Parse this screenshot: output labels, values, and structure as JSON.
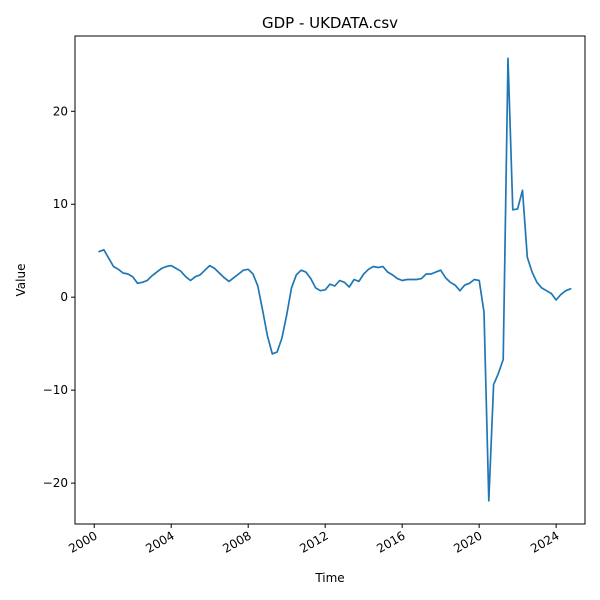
{
  "chart_data": {
    "type": "line",
    "title": "GDP - UKDATA.csv",
    "xlabel": "Time",
    "ylabel": "Value",
    "xlim": [
      1999.0,
      2025.5
    ],
    "ylim": [
      -24.4,
      28.1
    ],
    "grid": false,
    "x_ticks": [
      2000,
      2004,
      2008,
      2012,
      2016,
      2020,
      2024
    ],
    "x_tick_labels": [
      "2000",
      "2004",
      "2008",
      "2012",
      "2016",
      "2020",
      "2024"
    ],
    "y_ticks": [
      -20,
      -10,
      0,
      10,
      20
    ],
    "y_tick_labels": [
      "−20",
      "−10",
      "0",
      "10",
      "20"
    ],
    "series": [
      {
        "color": "#1f77b4",
        "x": [
          2000.25,
          2000.5,
          2000.75,
          2001.0,
          2001.25,
          2001.5,
          2001.75,
          2002.0,
          2002.25,
          2002.5,
          2002.75,
          2003.0,
          2003.25,
          2003.5,
          2003.75,
          2004.0,
          2004.25,
          2004.5,
          2004.75,
          2005.0,
          2005.25,
          2005.5,
          2005.75,
          2006.0,
          2006.25,
          2006.5,
          2006.75,
          2007.0,
          2007.25,
          2007.5,
          2007.75,
          2008.0,
          2008.25,
          2008.5,
          2008.75,
          2009.0,
          2009.25,
          2009.5,
          2009.75,
          2010.0,
          2010.25,
          2010.5,
          2010.75,
          2011.0,
          2011.25,
          2011.5,
          2011.75,
          2012.0,
          2012.25,
          2012.5,
          2012.75,
          2013.0,
          2013.25,
          2013.5,
          2013.75,
          2014.0,
          2014.25,
          2014.5,
          2014.75,
          2015.0,
          2015.25,
          2015.5,
          2015.75,
          2016.0,
          2016.25,
          2016.5,
          2016.75,
          2017.0,
          2017.25,
          2017.5,
          2017.75,
          2018.0,
          2018.25,
          2018.5,
          2018.75,
          2019.0,
          2019.25,
          2019.5,
          2019.75,
          2020.0,
          2020.25,
          2020.5,
          2020.75,
          2021.0,
          2021.25,
          2021.5,
          2021.75,
          2022.0,
          2022.25,
          2022.5,
          2022.75,
          2023.0,
          2023.25,
          2023.5,
          2023.75,
          2024.0,
          2024.25,
          2024.5,
          2024.75
        ],
        "y": [
          4.9,
          5.1,
          4.2,
          3.3,
          3.0,
          2.6,
          2.5,
          2.2,
          1.5,
          1.6,
          1.8,
          2.3,
          2.7,
          3.1,
          3.3,
          3.4,
          3.1,
          2.8,
          2.2,
          1.8,
          2.2,
          2.4,
          2.9,
          3.4,
          3.1,
          2.6,
          2.1,
          1.7,
          2.1,
          2.5,
          2.9,
          3.0,
          2.5,
          1.2,
          -1.4,
          -4.2,
          -6.1,
          -5.9,
          -4.4,
          -1.9,
          1.0,
          2.4,
          2.9,
          2.7,
          2.0,
          1.0,
          0.7,
          0.8,
          1.4,
          1.2,
          1.8,
          1.6,
          1.1,
          1.9,
          1.7,
          2.5,
          3.0,
          3.3,
          3.2,
          3.3,
          2.7,
          2.4,
          2.0,
          1.8,
          1.9,
          1.9,
          1.9,
          2.0,
          2.5,
          2.5,
          2.7,
          2.9,
          2.1,
          1.6,
          1.3,
          0.7,
          1.3,
          1.5,
          1.9,
          1.8,
          -1.6,
          -21.9,
          -9.4,
          -8.2,
          -6.7,
          25.7,
          9.4,
          9.5,
          11.5,
          4.3,
          2.7,
          1.6,
          1.0,
          0.7,
          0.4,
          -0.3,
          0.3,
          0.7,
          0.9
        ]
      }
    ]
  }
}
